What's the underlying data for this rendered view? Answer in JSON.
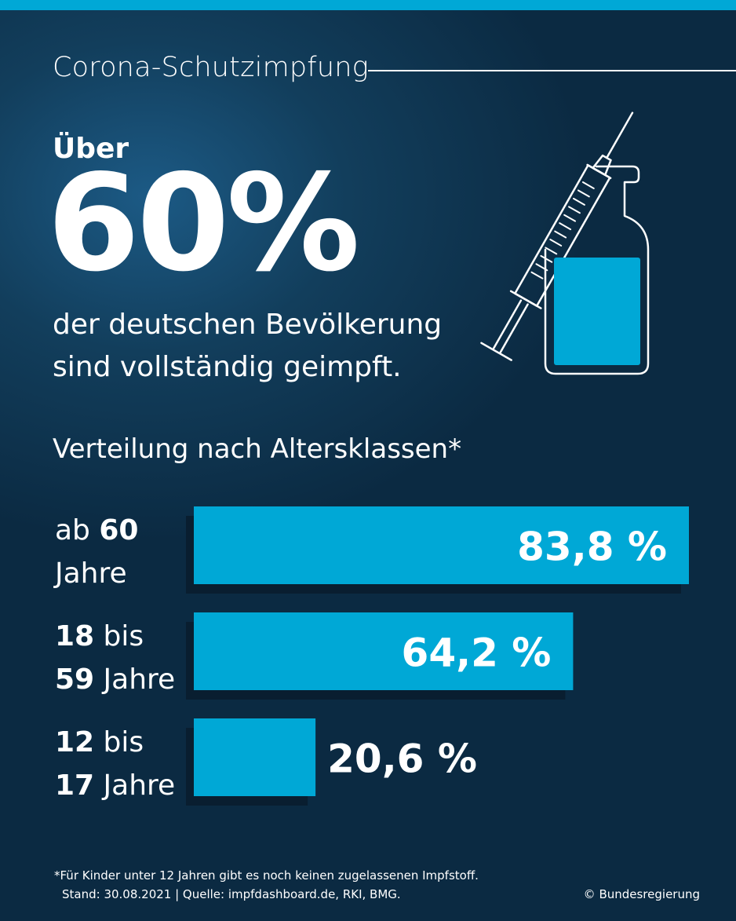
{
  "header": {
    "kicker": "Corona-Schutzimpfung",
    "lead": "Über",
    "big_number": "60%",
    "sub_line1": "der deutschen Bevölkerung",
    "sub_line2": "sind vollständig geimpft.",
    "illustration": "syringe-and-vial-icon"
  },
  "section_title": "Verteilung nach Altersklassen*",
  "chart_data": {
    "type": "bar",
    "orientation": "horizontal",
    "categories": [
      {
        "line1_bold": "",
        "line1_normal": "ab ",
        "line1_bold2": "60",
        "line2_bold": "",
        "line2_normal": "Jahre"
      },
      {
        "line1_bold": "18",
        "line1_normal": " bis",
        "line1_bold2": "",
        "line2_bold": "59",
        "line2_normal": " Jahre"
      },
      {
        "line1_bold": "12",
        "line1_normal": " bis",
        "line1_bold2": "",
        "line2_bold": "17",
        "line2_normal": " Jahre"
      }
    ],
    "values": [
      83.8,
      64.2,
      20.6
    ],
    "value_labels": [
      "83,8 %",
      "64,2 %",
      "20,6 %"
    ],
    "xlim": [
      0,
      100
    ],
    "colors": {
      "bar": "#00a8d6",
      "shadow": "#091e30"
    }
  },
  "footer": {
    "note": "*Für Kinder unter 12 Jahren gibt es noch keinen zugelassenen Impfstoff.",
    "source": "Stand: 30.08.2021 | Quelle: impfdashboard.de, RKI, BMG.",
    "credit": "© Bundesregierung"
  },
  "colors": {
    "accent": "#00a8d6",
    "background": "#0b2a42",
    "text": "#ffffff"
  }
}
